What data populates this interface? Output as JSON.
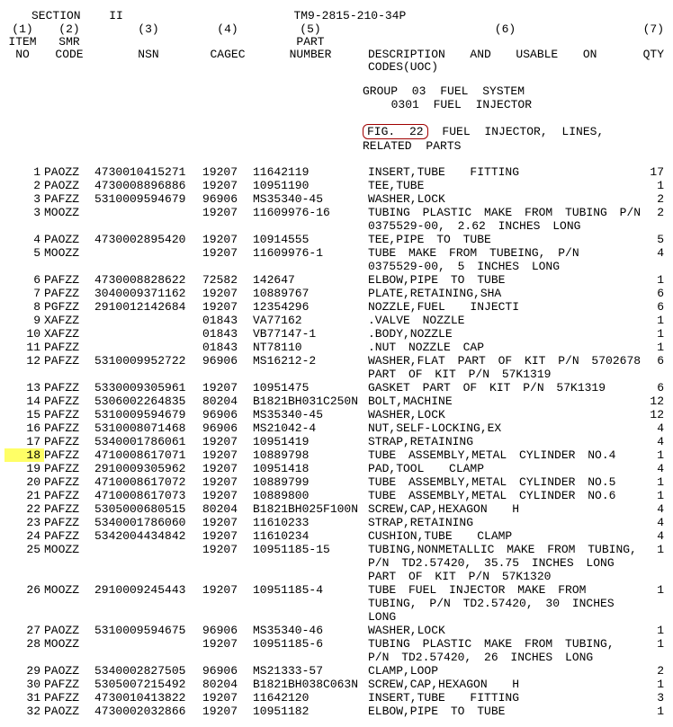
{
  "header": {
    "section_label": "SECTION",
    "section_num": "II",
    "tm": "TM9-2815-210-34P",
    "col_nums": [
      "(1)",
      "(2)",
      "(3)",
      "(4)",
      "(5)",
      "(6)",
      "(7)"
    ],
    "col_hdr_item1": "ITEM",
    "col_hdr_item2": "NO",
    "col_hdr_smr1": "SMR",
    "col_hdr_smr2": "CODE",
    "col_hdr_nsn": "NSN",
    "col_hdr_cagec": "CAGEC",
    "col_hdr_part1": "PART",
    "col_hdr_part2": "NUMBER",
    "col_hdr_desc": "DESCRIPTION  AND  USABLE  ON  CODES(UOC)",
    "col_hdr_qty": "QTY"
  },
  "group": {
    "line1": "GROUP 03 FUEL SYSTEM",
    "line2": "  0301 FUEL INJECTOR"
  },
  "fig": {
    "ref": "FIG. 22",
    "line1_rest": " FUEL INJECTOR, LINES,",
    "line2": "RELATED PARTS"
  },
  "rows": [
    {
      "item": "1",
      "smr": "PAOZZ",
      "nsn": "4730010415271",
      "cagec": "19207",
      "part": "11642119",
      "desc": "INSERT,TUBE  FITTING",
      "qty": "17"
    },
    {
      "item": "2",
      "smr": "PAOZZ",
      "nsn": "4730008896886",
      "cagec": "19207",
      "part": "10951190",
      "desc": "TEE,TUBE",
      "qty": "1"
    },
    {
      "item": "3",
      "smr": "PAFZZ",
      "nsn": "5310009594679",
      "cagec": "96906",
      "part": "MS35340-45",
      "desc": "WASHER,LOCK",
      "qty": "2"
    },
    {
      "item": "3",
      "smr": "MOOZZ",
      "nsn": "",
      "cagec": "19207",
      "part": "11609976-16",
      "desc": "TUBING PLASTIC MAKE FROM TUBING P/N 0375529-00, 2.62 INCHES LONG",
      "qty": "2"
    },
    {
      "item": "4",
      "smr": "PAOZZ",
      "nsn": "4730002895420",
      "cagec": "19207",
      "part": "10914555",
      "desc": "TEE,PIPE TO TUBE",
      "qty": "5"
    },
    {
      "item": "5",
      "smr": "MOOZZ",
      "nsn": "",
      "cagec": "19207",
      "part": "11609976-1",
      "desc": "TUBE MAKE FROM TUBEING, P/N 0375529-00, 5 INCHES LONG",
      "qty": "4"
    },
    {
      "item": "6",
      "smr": "PAFZZ",
      "nsn": "4730008828622",
      "cagec": "72582",
      "part": "142647",
      "desc": "ELBOW,PIPE TO TUBE",
      "qty": "1"
    },
    {
      "item": "7",
      "smr": "PAFZZ",
      "nsn": "3040009371162",
      "cagec": "19207",
      "part": "10889767",
      "desc": "PLATE,RETAINING,SHA",
      "qty": "6"
    },
    {
      "item": "8",
      "smr": "PGFZZ",
      "nsn": "2910012142684",
      "cagec": "19207",
      "part": "12354296",
      "desc": "NOZZLE,FUEL  INJECTI",
      "qty": "6"
    },
    {
      "item": "9",
      "smr": "XAFZZ",
      "nsn": "",
      "cagec": "01843",
      "part": "VA77162",
      "desc": ".VALVE NOZZLE",
      "qty": "1"
    },
    {
      "item": "10",
      "smr": "XAFZZ",
      "nsn": "",
      "cagec": "01843",
      "part": "VB77147-1",
      "desc": ".BODY,NOZZLE",
      "qty": "1"
    },
    {
      "item": "11",
      "smr": "PAFZZ",
      "nsn": "",
      "cagec": "01843",
      "part": "NT78110",
      "desc": ".NUT NOZZLE CAP",
      "qty": "1"
    },
    {
      "item": "12",
      "smr": "PAFZZ",
      "nsn": "5310009952722",
      "cagec": "96906",
      "part": "MS16212-2",
      "desc": "WASHER,FLAT PART OF KIT P/N 5702678 PART OF KIT P/N 57K1319",
      "qty": "6"
    },
    {
      "item": "13",
      "smr": "PAFZZ",
      "nsn": "5330009305961",
      "cagec": "19207",
      "part": "10951475",
      "desc": "GASKET PART OF KIT P/N 57K1319",
      "qty": "6"
    },
    {
      "item": "14",
      "smr": "PAFZZ",
      "nsn": "5306002264835",
      "cagec": "80204",
      "part": "B1821BH031C250N",
      "desc": "BOLT,MACHINE",
      "qty": "12"
    },
    {
      "item": "15",
      "smr": "PAFZZ",
      "nsn": "5310009594679",
      "cagec": "96906",
      "part": "MS35340-45",
      "desc": "WASHER,LOCK",
      "qty": "12"
    },
    {
      "item": "16",
      "smr": "PAFZZ",
      "nsn": "5310008071468",
      "cagec": "96906",
      "part": "MS21042-4",
      "desc": "NUT,SELF-LOCKING,EX",
      "qty": "4"
    },
    {
      "item": "17",
      "smr": "PAFZZ",
      "nsn": "5340001786061",
      "cagec": "19207",
      "part": "10951419",
      "desc": "STRAP,RETAINING",
      "qty": "4"
    },
    {
      "item": "18",
      "smr": "PAFZZ",
      "nsn": "4710008617071",
      "cagec": "19207",
      "part": "10889798",
      "desc": "TUBE ASSEMBLY,METAL CYLINDER NO.4",
      "qty": "1",
      "hl": true
    },
    {
      "item": "19",
      "smr": "PAFZZ",
      "nsn": "2910009305962",
      "cagec": "19207",
      "part": "10951418",
      "desc": "PAD,TOOL  CLAMP",
      "qty": "4"
    },
    {
      "item": "20",
      "smr": "PAFZZ",
      "nsn": "4710008617072",
      "cagec": "19207",
      "part": "10889799",
      "desc": "TUBE ASSEMBLY,METAL CYLINDER NO.5",
      "qty": "1"
    },
    {
      "item": "21",
      "smr": "PAFZZ",
      "nsn": "4710008617073",
      "cagec": "19207",
      "part": "10889800",
      "desc": "TUBE ASSEMBLY,METAL CYLINDER NO.6",
      "qty": "1"
    },
    {
      "item": "22",
      "smr": "PAFZZ",
      "nsn": "5305000680515",
      "cagec": "80204",
      "part": "B1821BH025F100N",
      "desc": "SCREW,CAP,HEXAGON  H",
      "qty": "4"
    },
    {
      "item": "23",
      "smr": "PAFZZ",
      "nsn": "5340001786060",
      "cagec": "19207",
      "part": "11610233",
      "desc": "STRAP,RETAINING",
      "qty": "4"
    },
    {
      "item": "24",
      "smr": "PAFZZ",
      "nsn": "5342004434842",
      "cagec": "19207",
      "part": "11610234",
      "desc": "CUSHION,TUBE  CLAMP",
      "qty": "4"
    },
    {
      "item": "25",
      "smr": "MOOZZ",
      "nsn": "",
      "cagec": "19207",
      "part": "10951185-15",
      "desc": "TUBING,NONMETALLIC MAKE FROM TUBING, P/N TD2.57420, 35.75 INCHES LONG PART OF KIT P/N 57K1320",
      "qty": "1"
    },
    {
      "item": "26",
      "smr": "MOOZZ",
      "nsn": "2910009245443",
      "cagec": "19207",
      "part": "10951185-4",
      "desc": "TUBE FUEL INJECTOR MAKE FROM TUBING, P/N TD2.57420, 30 INCHES LONG",
      "qty": "1"
    },
    {
      "item": "27",
      "smr": "PAOZZ",
      "nsn": "5310009594675",
      "cagec": "96906",
      "part": "MS35340-46",
      "desc": "WASHER,LOCK",
      "qty": "1"
    },
    {
      "item": "28",
      "smr": "MOOZZ",
      "nsn": "",
      "cagec": "19207",
      "part": "10951185-6",
      "desc": "TUBING PLASTIC MAKE FROM TUBING, P/N TD2.57420, 26 INCHES LONG",
      "qty": "1"
    },
    {
      "item": "29",
      "smr": "PAOZZ",
      "nsn": "5340002827505",
      "cagec": "96906",
      "part": "MS21333-57",
      "desc": "CLAMP,LOOP",
      "qty": "2"
    },
    {
      "item": "30",
      "smr": "PAFZZ",
      "nsn": "5305007215492",
      "cagec": "80204",
      "part": "B1821BH038C063N",
      "desc": "SCREW,CAP,HEXAGON  H",
      "qty": "1"
    },
    {
      "item": "31",
      "smr": "PAFZZ",
      "nsn": "4730010413822",
      "cagec": "19207",
      "part": "11642120",
      "desc": "INSERT,TUBE  FITTING",
      "qty": "3"
    },
    {
      "item": "32",
      "smr": "PAOZZ",
      "nsn": "4730002032866",
      "cagec": "19207",
      "part": "10951182",
      "desc": "ELBOW,PIPE TO TUBE",
      "qty": "1"
    }
  ]
}
